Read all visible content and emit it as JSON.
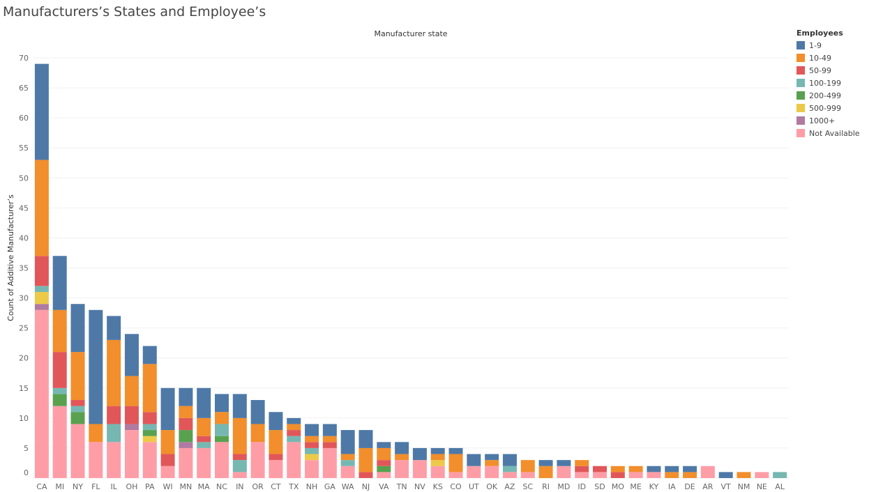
{
  "title": "Manufacturers’s States and Employee’s",
  "colors": {
    "1-9": "#4e79a7",
    "10-49": "#f28e2b",
    "50-99": "#e15759",
    "100-199": "#76b7b2",
    "200-499": "#59a14f",
    "500-999": "#edc948",
    "1000+": "#b07aa1",
    "Not Available": "#ff9da7"
  },
  "chart_data": {
    "type": "bar",
    "stacked": true,
    "title": "Manufacturer state",
    "xlabel": "",
    "ylabel": "Count of Additive Manufacturer’s",
    "ylim": [
      0,
      70
    ],
    "yticks": [
      0,
      5,
      10,
      15,
      20,
      25,
      30,
      35,
      40,
      45,
      50,
      55,
      60,
      65,
      70
    ],
    "grid": true,
    "legend": {
      "title": "Employees",
      "position": "right"
    },
    "categories": [
      "CA",
      "MI",
      "NY",
      "FL",
      "IL",
      "OH",
      "PA",
      "WI",
      "MN",
      "MA",
      "NC",
      "IN",
      "OR",
      "CT",
      "TX",
      "NH",
      "GA",
      "WA",
      "NJ",
      "VA",
      "TN",
      "NV",
      "KS",
      "CO",
      "UT",
      "OK",
      "AZ",
      "SC",
      "RI",
      "MD",
      "ID",
      "SD",
      "MO",
      "ME",
      "KY",
      "IA",
      "DE",
      "AR",
      "VT",
      "NM",
      "NE",
      "AL"
    ],
    "series": [
      {
        "name": "Not Available",
        "values": [
          28,
          12,
          9,
          6,
          6,
          8,
          6,
          2,
          5,
          5,
          6,
          1,
          6,
          3,
          6,
          3,
          5,
          2,
          0,
          1,
          3,
          3,
          2,
          1,
          2,
          2,
          1,
          1,
          0,
          2,
          1,
          1,
          0,
          1,
          1,
          0,
          0,
          2,
          0,
          0,
          1,
          0
        ]
      },
      {
        "name": "1000+",
        "values": [
          1,
          0,
          0,
          0,
          0,
          1,
          0,
          0,
          1,
          0,
          0,
          0,
          0,
          0,
          0,
          0,
          0,
          0,
          0,
          0,
          0,
          0,
          0,
          0,
          0,
          0,
          0,
          0,
          0,
          0,
          0,
          0,
          0,
          0,
          0,
          0,
          0,
          0,
          0,
          0,
          0,
          0
        ]
      },
      {
        "name": "500-999",
        "values": [
          2,
          0,
          0,
          0,
          0,
          0,
          1,
          0,
          0,
          0,
          0,
          0,
          0,
          0,
          0,
          1,
          0,
          0,
          0,
          0,
          0,
          0,
          1,
          0,
          0,
          0,
          0,
          0,
          0,
          0,
          0,
          0,
          0,
          0,
          0,
          0,
          0,
          0,
          0,
          0,
          0,
          0
        ]
      },
      {
        "name": "200-499",
        "values": [
          0,
          2,
          2,
          0,
          0,
          0,
          1,
          0,
          2,
          0,
          1,
          0,
          0,
          0,
          0,
          0,
          0,
          0,
          0,
          1,
          0,
          0,
          0,
          0,
          0,
          0,
          0,
          0,
          0,
          0,
          0,
          0,
          0,
          0,
          0,
          0,
          0,
          0,
          0,
          0,
          0,
          0
        ]
      },
      {
        "name": "100-199",
        "values": [
          1,
          1,
          1,
          0,
          3,
          0,
          1,
          0,
          0,
          1,
          2,
          2,
          0,
          0,
          1,
          1,
          0,
          1,
          0,
          0,
          0,
          0,
          0,
          0,
          0,
          0,
          1,
          0,
          0,
          0,
          0,
          0,
          0,
          0,
          0,
          0,
          0,
          0,
          0,
          0,
          0,
          1
        ]
      },
      {
        "name": "50-99",
        "values": [
          5,
          6,
          1,
          0,
          3,
          3,
          2,
          2,
          2,
          1,
          0,
          1,
          0,
          1,
          1,
          1,
          1,
          0,
          1,
          1,
          0,
          0,
          0,
          0,
          0,
          0,
          0,
          0,
          0,
          0,
          1,
          1,
          1,
          0,
          0,
          0,
          0,
          0,
          0,
          0,
          0,
          0
        ]
      },
      {
        "name": "10-49",
        "values": [
          16,
          7,
          8,
          3,
          11,
          5,
          8,
          4,
          2,
          3,
          2,
          6,
          3,
          4,
          1,
          1,
          1,
          1,
          4,
          2,
          1,
          0,
          1,
          3,
          0,
          1,
          0,
          2,
          2,
          0,
          1,
          0,
          1,
          1,
          0,
          1,
          1,
          0,
          0,
          1,
          0,
          0
        ]
      },
      {
        "name": "1-9",
        "values": [
          16,
          9,
          8,
          19,
          4,
          7,
          3,
          7,
          3,
          5,
          3,
          4,
          4,
          3,
          1,
          2,
          2,
          4,
          3,
          1,
          2,
          2,
          1,
          1,
          2,
          1,
          2,
          0,
          1,
          1,
          0,
          0,
          0,
          0,
          1,
          1,
          1,
          0,
          1,
          0,
          0,
          0
        ]
      }
    ]
  }
}
